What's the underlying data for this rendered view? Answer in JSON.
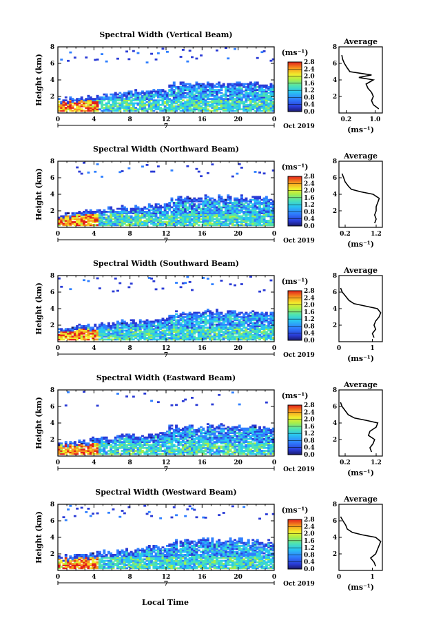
{
  "figure": {
    "xaxis_label": "Local Time",
    "date_label": "Oct 2019",
    "unit_label": "(ms⁻¹)",
    "avg_xlabel": "(ms⁻¹)",
    "avg_title": "Average",
    "ylabel": "Height (km)",
    "sub_label": "7"
  },
  "chart_data": [
    {
      "type": "heatmap",
      "title": "Spectral Width (Vertical Beam)",
      "xlabel": "Local Time",
      "ylabel": "Height (km)",
      "xlim": [
        0,
        24
      ],
      "ylim": [
        0,
        8
      ],
      "xticks": [
        "0",
        "4",
        "8",
        "12",
        "16",
        "20",
        "0"
      ],
      "yticks": [
        "2",
        "4",
        "6",
        "8"
      ],
      "colorbar": {
        "label": "(ms⁻¹)",
        "range": [
          0,
          2.8
        ],
        "ticks": [
          "0.0",
          "0.4",
          "0.8",
          "1.2",
          "1.6",
          "2.0",
          "2.4",
          "2.8"
        ]
      },
      "average_profile": {
        "title": "Average",
        "xlabel": "(ms⁻¹)",
        "xlim": [
          0,
          1.2
        ],
        "xticks": [
          "0.2",
          "1.0"
        ],
        "height_km": [
          0.5,
          1.0,
          1.5,
          2.0,
          2.5,
          3.0,
          3.5,
          4.0,
          4.3,
          4.6,
          5.0,
          5.5,
          6.0,
          6.5,
          7.0
        ],
        "width": [
          1.1,
          0.95,
          0.9,
          0.95,
          0.9,
          0.8,
          0.75,
          0.95,
          0.55,
          0.9,
          0.3,
          0.22,
          0.15,
          0.1,
          0.08
        ]
      }
    },
    {
      "type": "heatmap",
      "title": "Spectral Width (Northward Beam)",
      "xlabel": "Local Time",
      "ylabel": "Height (km)",
      "xlim": [
        0,
        24
      ],
      "ylim": [
        0,
        8
      ],
      "xticks": [
        "0",
        "4",
        "8",
        "12",
        "16",
        "20",
        "0"
      ],
      "yticks": [
        "2",
        "4",
        "6",
        "8"
      ],
      "colorbar": {
        "label": "(ms⁻¹)",
        "range": [
          0,
          2.8
        ],
        "ticks": [
          "0.0",
          "0.4",
          "0.8",
          "1.2",
          "1.6",
          "2.0",
          "2.4",
          "2.8"
        ]
      },
      "average_profile": {
        "title": "Average",
        "xlabel": "(ms⁻¹)",
        "xlim": [
          0,
          1.4
        ],
        "xticks": [
          "0.2",
          "1.2"
        ],
        "height_km": [
          0.5,
          1.0,
          1.5,
          2.0,
          2.5,
          3.0,
          3.5,
          4.0,
          4.3,
          4.6,
          5.0,
          5.5,
          6.0,
          6.5
        ],
        "width": [
          1.15,
          1.2,
          1.15,
          1.2,
          1.2,
          1.25,
          1.3,
          1.1,
          0.7,
          0.4,
          0.3,
          0.2,
          0.15,
          0.1
        ]
      }
    },
    {
      "type": "heatmap",
      "title": "Spectral Width (Southward Beam)",
      "xlabel": "Local Time",
      "ylabel": "Height (km)",
      "xlim": [
        0,
        24
      ],
      "ylim": [
        0,
        8
      ],
      "xticks": [
        "0",
        "4",
        "8",
        "12",
        "16",
        "20",
        "0"
      ],
      "yticks": [
        "2",
        "4",
        "6",
        "8"
      ],
      "colorbar": {
        "label": "(ms⁻¹)",
        "range": [
          0,
          2.8
        ],
        "ticks": [
          "0.0",
          "0.4",
          "0.8",
          "1.2",
          "1.6",
          "2.0",
          "2.4",
          "2.8"
        ]
      },
      "average_profile": {
        "title": "Average",
        "xlabel": "(ms⁻¹)",
        "xlim": [
          0,
          1.3
        ],
        "xticks": [
          "0",
          "1"
        ],
        "height_km": [
          0.5,
          1.0,
          1.5,
          2.0,
          2.5,
          3.0,
          3.5,
          4.0,
          4.3,
          4.6,
          5.0,
          5.5,
          6.0,
          6.5
        ],
        "width": [
          1.05,
          1.0,
          1.1,
          1.05,
          1.1,
          1.2,
          1.25,
          1.15,
          0.8,
          0.45,
          0.3,
          0.2,
          0.1,
          0.05
        ]
      }
    },
    {
      "type": "heatmap",
      "title": "Spectral Width (Eastward Beam)",
      "xlabel": "Local Time",
      "ylabel": "Height (km)",
      "xlim": [
        0,
        24
      ],
      "ylim": [
        0,
        8
      ],
      "xticks": [
        "0",
        "4",
        "8",
        "12",
        "16",
        "20",
        "0"
      ],
      "yticks": [
        "2",
        "4",
        "6",
        "8"
      ],
      "colorbar": {
        "label": "(ms⁻¹)",
        "range": [
          0,
          2.8
        ],
        "ticks": [
          "0.0",
          "0.4",
          "0.8",
          "1.2",
          "1.6",
          "2.0",
          "2.4",
          "2.8"
        ]
      },
      "average_profile": {
        "title": "Average",
        "xlabel": "(ms⁻¹)",
        "xlim": [
          0,
          1.4
        ],
        "xticks": [
          "0.2",
          "1.2"
        ],
        "height_km": [
          0.5,
          1.0,
          1.5,
          2.0,
          2.5,
          3.0,
          3.5,
          4.0,
          4.3,
          4.6,
          5.0,
          5.5,
          6.0,
          6.5
        ],
        "width": [
          1.05,
          1.0,
          1.1,
          1.15,
          0.95,
          1.0,
          1.2,
          1.25,
          0.9,
          0.5,
          0.3,
          0.2,
          0.1,
          0.05
        ]
      }
    },
    {
      "type": "heatmap",
      "title": "Spectral Width (Westward Beam)",
      "xlabel": "Local Time",
      "ylabel": "Height (km)",
      "xlim": [
        0,
        24
      ],
      "ylim": [
        0,
        8
      ],
      "xticks": [
        "0",
        "4",
        "8",
        "12",
        "16",
        "20",
        "0"
      ],
      "yticks": [
        "2",
        "4",
        "6",
        "8"
      ],
      "colorbar": {
        "label": "(ms⁻¹)",
        "range": [
          0,
          2.8
        ],
        "ticks": [
          "0.0",
          "0.4",
          "0.8",
          "1.2",
          "1.6",
          "2.0",
          "2.4",
          "2.8"
        ]
      },
      "average_profile": {
        "title": "Average",
        "xlabel": "(ms⁻¹)",
        "xlim": [
          0,
          1.3
        ],
        "xticks": [
          "0",
          "1"
        ],
        "height_km": [
          0.5,
          1.0,
          1.5,
          2.0,
          2.5,
          3.0,
          3.5,
          4.0,
          4.3,
          4.6,
          5.0,
          5.5,
          6.0,
          6.5
        ],
        "width": [
          1.1,
          1.05,
          0.95,
          1.1,
          1.15,
          1.2,
          1.25,
          1.1,
          0.7,
          0.4,
          0.25,
          0.2,
          0.12,
          0.05
        ]
      }
    }
  ]
}
